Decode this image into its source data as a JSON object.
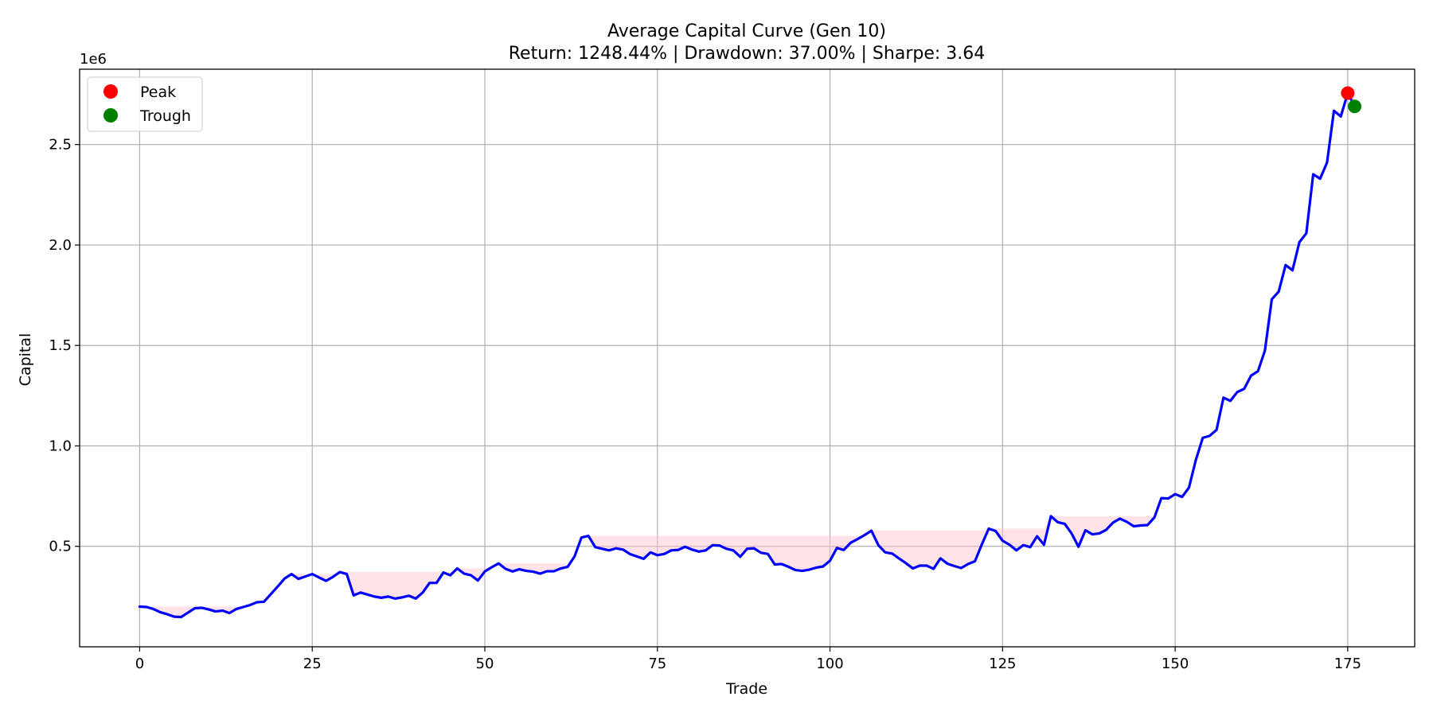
{
  "chart_data": {
    "type": "line",
    "title": "Average Capital Curve (Gen 10)",
    "subtitle": "Return: 1248.44% | Drawdown: 37.00% | Sharpe: 3.64",
    "xlabel": "Trade",
    "ylabel": "Capital",
    "y_scale_label": "1e6",
    "xlim": [
      -8.7,
      184.7
    ],
    "ylim": [
      0.0,
      2.875
    ],
    "xticks": [
      0,
      25,
      50,
      75,
      100,
      125,
      150,
      175
    ],
    "yticks": [
      0.5,
      1.0,
      1.5,
      2.0,
      2.5
    ],
    "ytick_labels": [
      "0.5",
      "1.0",
      "1.5",
      "2.0",
      "2.5"
    ],
    "grid": true,
    "legend_position": "top-left",
    "colors": {
      "line": "#0000ff",
      "drawdown_fill": "#ffc0cb",
      "peak": "#ff0000",
      "trough": "#008000",
      "grid": "#b0b0b0"
    },
    "series": [
      {
        "name": "Capital",
        "values": [
          0.2,
          0.198,
          0.188,
          0.172,
          0.162,
          0.15,
          0.148,
          0.17,
          0.192,
          0.194,
          0.186,
          0.176,
          0.18,
          0.168,
          0.188,
          0.198,
          0.208,
          0.222,
          0.224,
          0.262,
          0.3,
          0.34,
          0.362,
          0.338,
          0.35,
          0.362,
          0.345,
          0.328,
          0.348,
          0.372,
          0.362,
          0.256,
          0.27,
          0.26,
          0.25,
          0.244,
          0.25,
          0.24,
          0.246,
          0.254,
          0.24,
          0.27,
          0.318,
          0.318,
          0.37,
          0.356,
          0.39,
          0.364,
          0.356,
          0.33,
          0.375,
          0.396,
          0.415,
          0.388,
          0.375,
          0.386,
          0.378,
          0.374,
          0.364,
          0.376,
          0.376,
          0.39,
          0.398,
          0.45,
          0.544,
          0.552,
          0.496,
          0.488,
          0.48,
          0.49,
          0.484,
          0.462,
          0.45,
          0.438,
          0.47,
          0.456,
          0.462,
          0.48,
          0.482,
          0.498,
          0.484,
          0.474,
          0.48,
          0.506,
          0.504,
          0.488,
          0.48,
          0.448,
          0.488,
          0.49,
          0.468,
          0.462,
          0.41,
          0.412,
          0.398,
          0.382,
          0.378,
          0.384,
          0.394,
          0.4,
          0.428,
          0.492,
          0.482,
          0.518,
          0.536,
          0.556,
          0.578,
          0.506,
          0.47,
          0.464,
          0.44,
          0.416,
          0.39,
          0.404,
          0.404,
          0.388,
          0.44,
          0.414,
          0.402,
          0.392,
          0.412,
          0.426,
          0.51,
          0.588,
          0.576,
          0.528,
          0.508,
          0.48,
          0.506,
          0.496,
          0.55,
          0.508,
          0.65,
          0.62,
          0.612,
          0.564,
          0.498,
          0.58,
          0.56,
          0.564,
          0.582,
          0.618,
          0.638,
          0.622,
          0.6,
          0.604,
          0.606,
          0.644,
          0.74,
          0.738,
          0.76,
          0.746,
          0.792,
          0.93,
          1.04,
          1.05,
          1.08,
          1.24,
          1.224,
          1.268,
          1.284,
          1.35,
          1.372,
          1.474,
          1.73,
          1.768,
          1.9,
          1.874,
          2.014,
          2.058,
          2.352,
          2.33,
          2.41,
          2.668,
          2.64,
          2.756,
          2.69
        ]
      }
    ],
    "running_peak": "drawdown shading between running max and capital",
    "markers": [
      {
        "name": "Peak",
        "x": 175,
        "y": 2.756
      },
      {
        "name": "Trough",
        "x": 176,
        "y": 2.69
      }
    ]
  }
}
